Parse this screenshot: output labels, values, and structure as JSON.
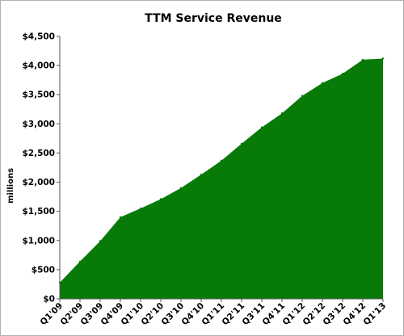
{
  "chart_data": {
    "type": "area",
    "title": "TTM Service Revenue",
    "xlabel": "",
    "ylabel": "millions",
    "categories": [
      "Q1'09",
      "Q2'09",
      "Q3'09",
      "Q4'09",
      "Q1'10",
      "Q2'10",
      "Q3'10",
      "Q4'10",
      "Q1'11",
      "Q2'11",
      "Q3'11",
      "Q4'11",
      "Q1'12",
      "Q2'12",
      "Q3'12",
      "Q4'12",
      "Q1'13"
    ],
    "values": [
      280,
      640,
      990,
      1400,
      1550,
      1710,
      1900,
      2130,
      2370,
      2660,
      2940,
      3180,
      3480,
      3700,
      3860,
      4100,
      4120
    ],
    "ylim": [
      0,
      4500
    ],
    "yticks": [
      0,
      500,
      1000,
      1500,
      2000,
      2500,
      3000,
      3500,
      4000,
      4500
    ],
    "ytick_labels": [
      "$0",
      "$500",
      "$1,000",
      "$1,500",
      "$2,000",
      "$2,500",
      "$3,000",
      "$3,500",
      "$4,000",
      "$4,500"
    ],
    "fill_color": "#087a08",
    "grid": false,
    "legend": "none"
  }
}
